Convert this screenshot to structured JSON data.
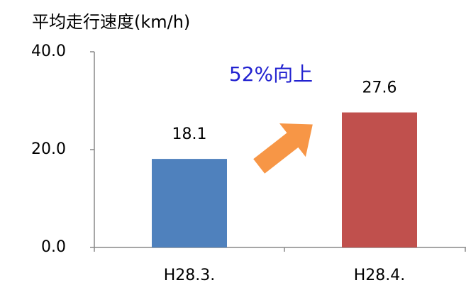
{
  "chart_data": {
    "type": "bar",
    "title": "平均走行速度(km/h)",
    "categories": [
      "H28.3.",
      "H28.4."
    ],
    "values": [
      18.1,
      27.6
    ],
    "colors": [
      "#4f81bd",
      "#c0504d"
    ],
    "annotation": "52%向上",
    "ylim": [
      0,
      40
    ],
    "yticks": [
      {
        "value": 0,
        "label": "0.0"
      },
      {
        "value": 20,
        "label": "20.0"
      },
      {
        "value": 40,
        "label": "40.0"
      }
    ],
    "grid": false
  }
}
